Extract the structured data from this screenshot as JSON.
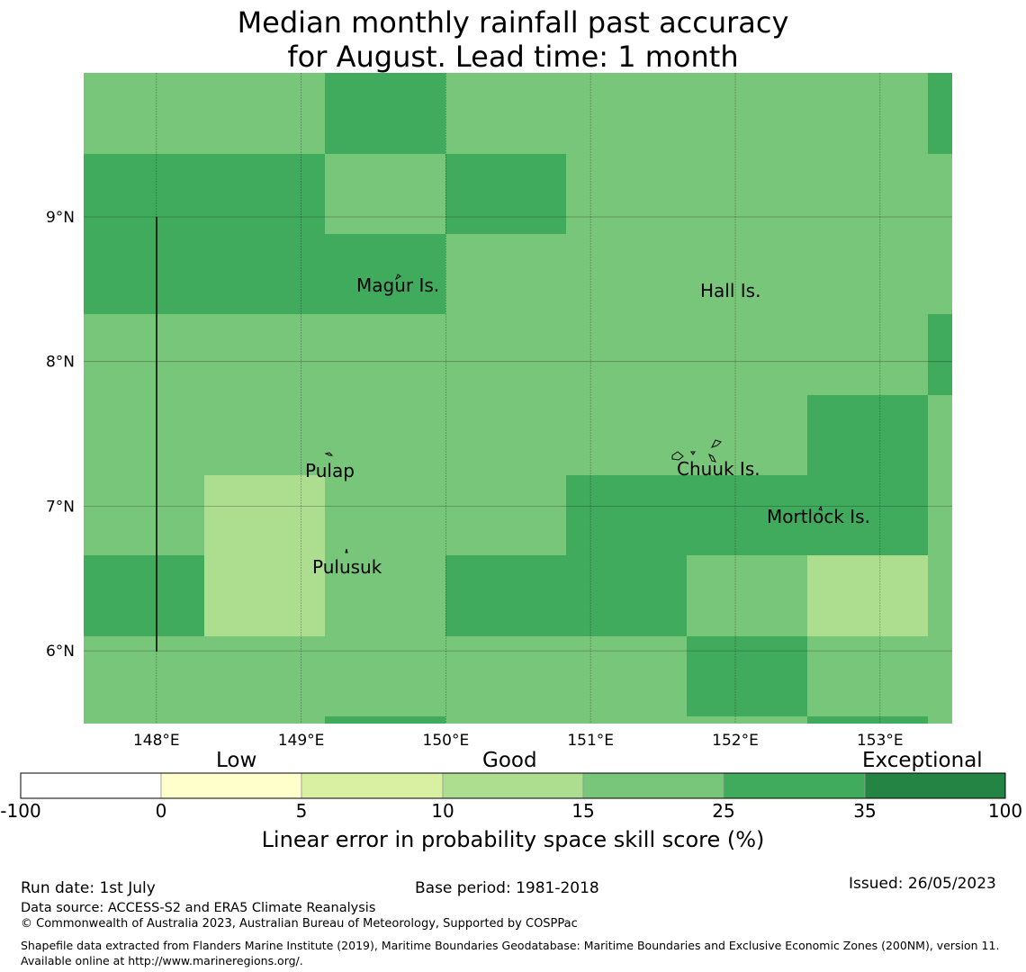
{
  "title": {
    "line1": "Median monthly rainfall past accuracy",
    "line2": "for August. Lead time: 1 month"
  },
  "map": {
    "lon_range": [
      147.5,
      153.5
    ],
    "lat_range": [
      5.5,
      10.0
    ],
    "grid_cell_size_deg": [
      0.833,
      0.556
    ],
    "x_ticks": [
      "148°E",
      "149°E",
      "150°E",
      "151°E",
      "152°E",
      "153°E"
    ],
    "y_ticks": [
      "9°N",
      "8°N",
      "7°N",
      "6°N"
    ],
    "grid_values": [
      [
        25,
        25,
        35,
        25,
        25,
        25,
        25,
        35
      ],
      [
        35,
        35,
        25,
        35,
        25,
        25,
        25,
        25
      ],
      [
        35,
        35,
        35,
        25,
        25,
        25,
        25,
        25
      ],
      [
        25,
        25,
        25,
        25,
        25,
        25,
        25,
        35
      ],
      [
        25,
        25,
        25,
        25,
        25,
        25,
        35,
        25
      ],
      [
        25,
        15,
        25,
        25,
        35,
        35,
        35,
        25
      ],
      [
        35,
        15,
        25,
        35,
        35,
        25,
        15,
        25
      ],
      [
        25,
        25,
        25,
        25,
        25,
        35,
        25,
        25
      ],
      [
        25,
        25,
        35,
        25,
        25,
        25,
        35,
        25
      ]
    ],
    "places": [
      {
        "name": "Magur Is.",
        "lon": 149.7,
        "lat": 8.55
      },
      {
        "name": "Hall Is.",
        "lon": 151.85,
        "lat": 8.48
      },
      {
        "name": "Pulap",
        "lon": 149.2,
        "lat": 7.27
      },
      {
        "name": "Chuuk Is.",
        "lon": 151.85,
        "lat": 7.3
      },
      {
        "name": "Mortlock Is.",
        "lon": 152.6,
        "lat": 6.97
      },
      {
        "name": "Pulusuk",
        "lon": 149.33,
        "lat": 6.6
      }
    ]
  },
  "colorbar": {
    "category_labels": [
      "Low",
      "Good",
      "Exceptional"
    ],
    "tick_labels": [
      "-100",
      "0",
      "5",
      "10",
      "15",
      "25",
      "35",
      "100"
    ],
    "colors": [
      "#ffffff",
      "#ffffcc",
      "#d9f0a3",
      "#addd8e",
      "#78c679",
      "#41ab5d",
      "#238443"
    ],
    "label": "Linear error in probability space skill score (%)"
  },
  "footer": {
    "run_date": "Run date: 1st July",
    "base_period": "Base period: 1981-2018",
    "issued": "Issued: 26/05/2023",
    "data_source": "Data source: ACCESS-S2 and ERA5 Climate Reanalysis",
    "copyright": "© Commonwealth of Australia 2023, Australian Bureau of Meteorology, Supported by COSPPac",
    "shapefile": "Shapefile data extracted from Flanders Marine Institute (2019), Maritime Boundaries Geodatabase: Maritime Boundaries and Exclusive Economic Zones (200NM), version 11. Available online at http://www.marineregions.org/."
  }
}
